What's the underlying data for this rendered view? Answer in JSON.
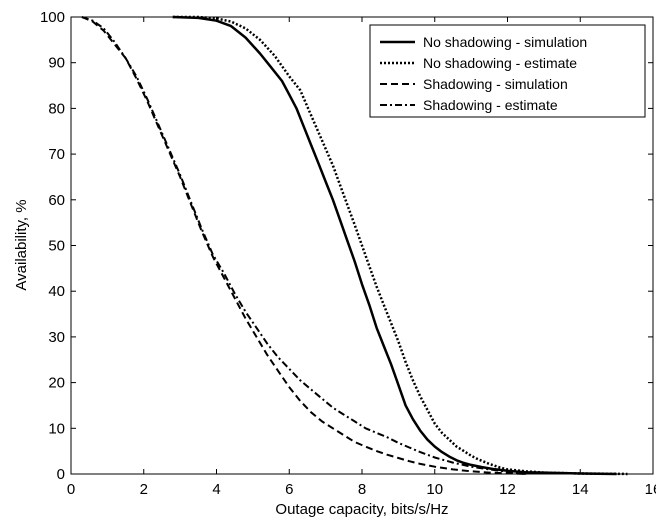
{
  "chart_data": {
    "type": "line",
    "title": "",
    "xlabel": "Outage capacity, bits/s/Hz",
    "ylabel": "Availability, %",
    "xlim": [
      0,
      16
    ],
    "ylim": [
      0,
      100
    ],
    "xticks": [
      0,
      2,
      4,
      6,
      8,
      10,
      12,
      14,
      16
    ],
    "yticks": [
      0,
      10,
      20,
      30,
      40,
      50,
      60,
      70,
      80,
      90,
      100
    ],
    "grid": false,
    "legend_position": "top-right",
    "series": [
      {
        "name": "No shadowing - simulation",
        "style": "solid",
        "x": [
          2.8,
          3.5,
          4.0,
          4.4,
          4.8,
          5.2,
          5.5,
          5.8,
          6.0,
          6.2,
          6.4,
          6.6,
          6.8,
          7.0,
          7.2,
          7.4,
          7.6,
          7.8,
          8.0,
          8.2,
          8.4,
          8.6,
          8.8,
          9.0,
          9.2,
          9.4,
          9.6,
          9.8,
          10.0,
          10.2,
          10.4,
          10.6,
          10.8,
          11.0,
          11.3,
          11.6,
          12.0,
          12.5,
          13.0,
          14.0,
          15.0
        ],
        "y": [
          100,
          99.8,
          99.2,
          98,
          95.5,
          92,
          89,
          86,
          83,
          80,
          76,
          72,
          68,
          64,
          60,
          55.5,
          51,
          46.5,
          41.5,
          37,
          32,
          28,
          24,
          19.5,
          15,
          12,
          9.5,
          7.5,
          6,
          4.8,
          3.8,
          3.0,
          2.4,
          2.0,
          1.5,
          1.1,
          0.7,
          0.4,
          0.3,
          0.1,
          0
        ]
      },
      {
        "name": "No shadowing - estimate",
        "style": "dotted",
        "x": [
          2.8,
          3.5,
          4.0,
          4.4,
          4.8,
          5.2,
          5.6,
          6.0,
          6.3,
          6.6,
          6.9,
          7.2,
          7.5,
          7.8,
          8.0,
          8.2,
          8.4,
          8.6,
          8.8,
          9.0,
          9.2,
          9.4,
          9.6,
          9.8,
          10.0,
          10.2,
          10.4,
          10.6,
          10.8,
          11.0,
          11.2,
          11.5,
          11.8,
          12.0,
          12.5,
          13.0,
          14.0,
          15.0,
          15.3
        ],
        "y": [
          100,
          100,
          99.7,
          99,
          97.5,
          95,
          91.5,
          87,
          84,
          78.5,
          73,
          67.5,
          61,
          54.5,
          50,
          45.5,
          41,
          37,
          33,
          29,
          24.5,
          20.5,
          17,
          14,
          11,
          9,
          7.5,
          6,
          5,
          4,
          3.2,
          2.2,
          1.4,
          1.0,
          0.6,
          0.3,
          0.1,
          0.05,
          0
        ]
      },
      {
        "name": "Shadowing - simulation",
        "style": "dashed",
        "x": [
          0.3,
          0.6,
          0.9,
          1.2,
          1.5,
          1.8,
          2.1,
          2.4,
          2.7,
          3.0,
          3.3,
          3.6,
          3.9,
          4.2,
          4.5,
          4.8,
          5.1,
          5.4,
          5.7,
          6.0,
          6.3,
          6.6,
          6.9,
          7.2,
          7.5,
          7.8,
          8.1,
          8.4,
          8.7,
          9.0,
          9.3,
          9.6,
          10.0,
          10.5,
          11.0,
          11.5,
          12.0,
          12.5
        ],
        "y": [
          100,
          99,
          97,
          94,
          91,
          86.5,
          81.5,
          76,
          70.5,
          65,
          59,
          53,
          47.5,
          43,
          38.5,
          34,
          30,
          26,
          22.5,
          19,
          16,
          13.5,
          11.5,
          10,
          8.5,
          7,
          6,
          5,
          4.2,
          3.5,
          2.8,
          2.2,
          1.6,
          1.0,
          0.6,
          0.3,
          0.15,
          0
        ]
      },
      {
        "name": "Shadowing - estimate",
        "style": "dashdot",
        "x": [
          0.3,
          0.6,
          0.9,
          1.2,
          1.5,
          1.8,
          2.1,
          2.4,
          2.7,
          3.0,
          3.3,
          3.6,
          3.9,
          4.2,
          4.5,
          4.8,
          5.1,
          5.4,
          5.7,
          6.0,
          6.3,
          6.6,
          6.9,
          7.2,
          7.5,
          7.8,
          8.1,
          8.4,
          8.7,
          9.0,
          9.3,
          9.6,
          10.0,
          10.5,
          11.0,
          11.5,
          12.0,
          12.5
        ],
        "y": [
          100,
          99.2,
          97.5,
          94.5,
          91,
          87,
          82,
          76.5,
          71,
          65.5,
          59.5,
          53.5,
          48,
          44,
          39.5,
          35.5,
          32,
          28.5,
          25.5,
          23,
          20.5,
          18.5,
          16.5,
          14.5,
          13,
          11.5,
          10,
          9,
          8,
          6.8,
          5.8,
          4.8,
          3.6,
          2.5,
          1.6,
          1.0,
          0.5,
          0
        ]
      }
    ]
  }
}
